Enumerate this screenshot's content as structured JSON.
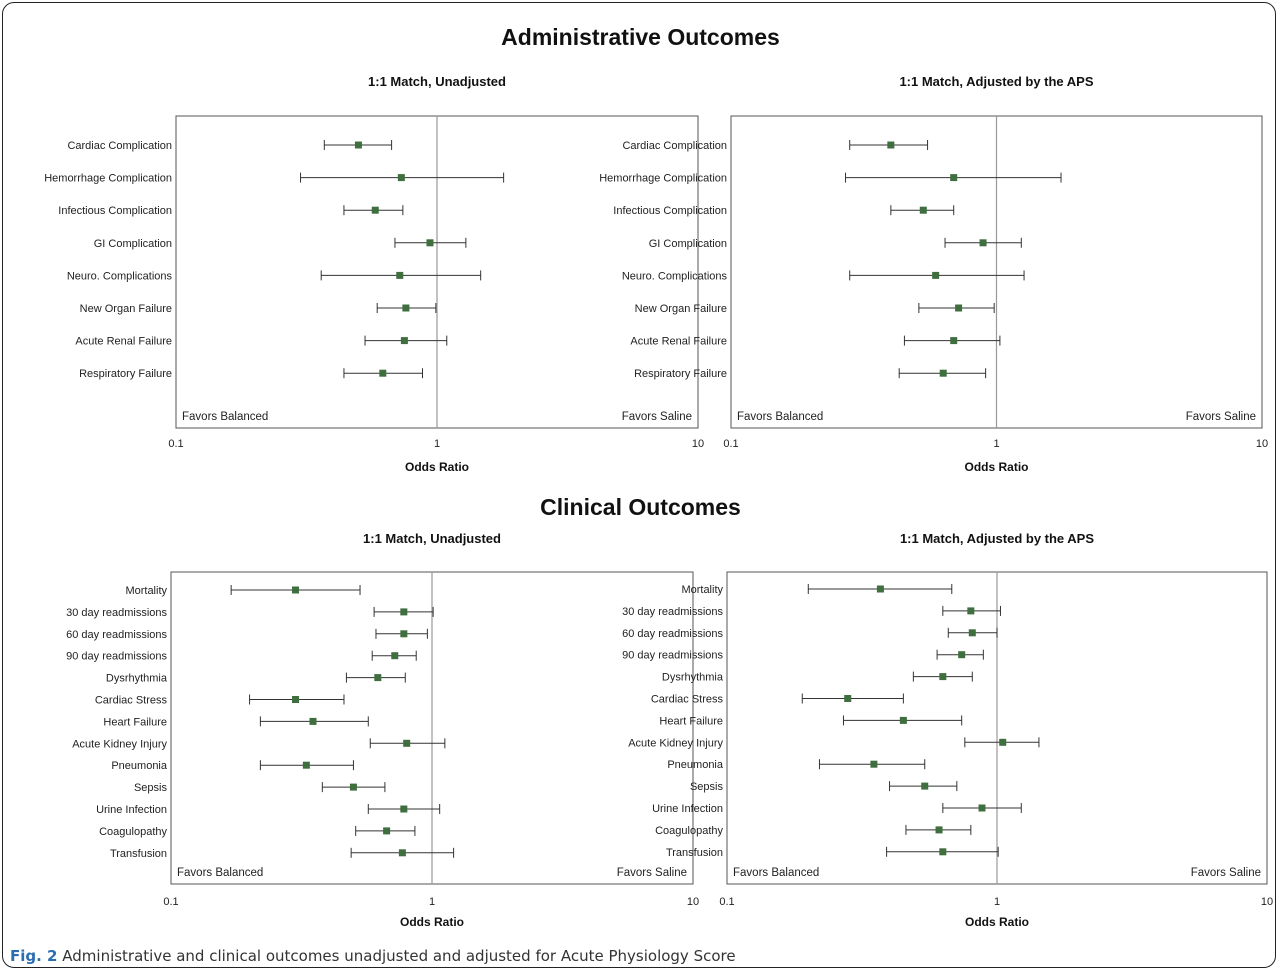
{
  "sections": {
    "admin_title": "Administrative Outcomes",
    "clinical_title": "Clinical Outcomes"
  },
  "caption": {
    "label": "Fig. 2",
    "text": "Administrative and clinical outcomes unadjusted and adjusted for Acute Physiology Score"
  },
  "colors": {
    "marker": "#3f6e3f",
    "refline": "#999999",
    "axis": "#555555"
  },
  "chart_data": [
    {
      "type": "forest",
      "title": "1:1 Match, Unadjusted",
      "xlabel": "Odds Ratio",
      "xscale": "log",
      "xlim": [
        0.1,
        10
      ],
      "xticks": [
        "0.1",
        "1",
        "10"
      ],
      "reference_line": 1,
      "left_annotation": "Favors Balanced",
      "right_annotation": "Favors Saline",
      "categories": [
        "Cardiac Complication",
        "Hemorrhage Complication",
        "Infectious Complication",
        "GI Complication",
        "Neuro. Complications",
        "New Organ Failure",
        "Acute Renal Failure",
        "Respiratory Failure"
      ],
      "or": [
        0.5,
        0.73,
        0.58,
        0.94,
        0.72,
        0.76,
        0.75,
        0.62
      ],
      "ci_low": [
        0.37,
        0.3,
        0.44,
        0.69,
        0.36,
        0.59,
        0.53,
        0.44
      ],
      "ci_high": [
        0.67,
        1.8,
        0.74,
        1.29,
        1.47,
        0.99,
        1.09,
        0.88
      ]
    },
    {
      "type": "forest",
      "title": "1:1 Match, Adjusted by the APS",
      "xlabel": "Odds Ratio",
      "xscale": "log",
      "xlim": [
        0.1,
        10
      ],
      "xticks": [
        "0.1",
        "1",
        "10"
      ],
      "reference_line": 1,
      "left_annotation": "Favors Balanced",
      "right_annotation": "Favors Saline",
      "categories": [
        "Cardiac Complication",
        "Hemorrhage Complication",
        "Infectious Complication",
        "GI Complication",
        "Neuro. Complications",
        "New Organ Failure",
        "Acute Renal Failure",
        "Respiratory Failure"
      ],
      "or": [
        0.4,
        0.69,
        0.53,
        0.89,
        0.59,
        0.72,
        0.69,
        0.63
      ],
      "ci_low": [
        0.28,
        0.27,
        0.4,
        0.64,
        0.28,
        0.51,
        0.45,
        0.43
      ],
      "ci_high": [
        0.55,
        1.75,
        0.69,
        1.24,
        1.27,
        0.98,
        1.03,
        0.91
      ]
    },
    {
      "type": "forest",
      "title": "1:1 Match, Unadjusted",
      "xlabel": "Odds Ratio",
      "xscale": "log",
      "xlim": [
        0.1,
        10
      ],
      "xticks": [
        "0.1",
        "1",
        "10"
      ],
      "reference_line": 1,
      "left_annotation": "Favors Balanced",
      "right_annotation": "Favors Saline",
      "categories": [
        "Mortality",
        "30 day readmissions",
        "60 day readmissions",
        "90 day readmissions",
        "Dysrhythmia",
        "Cardiac Stress",
        "Heart Failure",
        "Acute Kidney Injury",
        "Pneumonia",
        "Sepsis",
        "Urine Infection",
        "Coagulopathy",
        "Transfusion"
      ],
      "or": [
        0.3,
        0.78,
        0.78,
        0.72,
        0.62,
        0.3,
        0.35,
        0.8,
        0.33,
        0.5,
        0.78,
        0.67,
        0.77
      ],
      "ci_low": [
        0.17,
        0.6,
        0.61,
        0.59,
        0.47,
        0.2,
        0.22,
        0.58,
        0.22,
        0.38,
        0.57,
        0.51,
        0.49
      ],
      "ci_high": [
        0.53,
        1.01,
        0.96,
        0.87,
        0.79,
        0.46,
        0.57,
        1.12,
        0.5,
        0.66,
        1.07,
        0.86,
        1.21
      ]
    },
    {
      "type": "forest",
      "title": "1:1 Match, Adjusted by the APS",
      "xlabel": "Odds Ratio",
      "xscale": "log",
      "xlim": [
        0.1,
        10
      ],
      "xticks": [
        "0.1",
        "1",
        "10"
      ],
      "reference_line": 1,
      "left_annotation": "Favors Balanced",
      "right_annotation": "Favors Saline",
      "categories": [
        "Mortality",
        "30 day readmissions",
        "60 day readmissions",
        "90 day readmissions",
        "Dysrhythmia",
        "Cardiac Stress",
        "Heart Failure",
        "Acute Kidney Injury",
        "Pneumonia",
        "Sepsis",
        "Urine Infection",
        "Coagulopathy",
        "Transfusion"
      ],
      "or": [
        0.37,
        0.8,
        0.81,
        0.74,
        0.63,
        0.28,
        0.45,
        1.05,
        0.35,
        0.54,
        0.88,
        0.61,
        0.63
      ],
      "ci_low": [
        0.2,
        0.63,
        0.66,
        0.6,
        0.49,
        0.19,
        0.27,
        0.76,
        0.22,
        0.4,
        0.63,
        0.46,
        0.39
      ],
      "ci_high": [
        0.68,
        1.03,
        1.0,
        0.89,
        0.81,
        0.45,
        0.74,
        1.43,
        0.54,
        0.71,
        1.23,
        0.8,
        1.01
      ]
    }
  ]
}
